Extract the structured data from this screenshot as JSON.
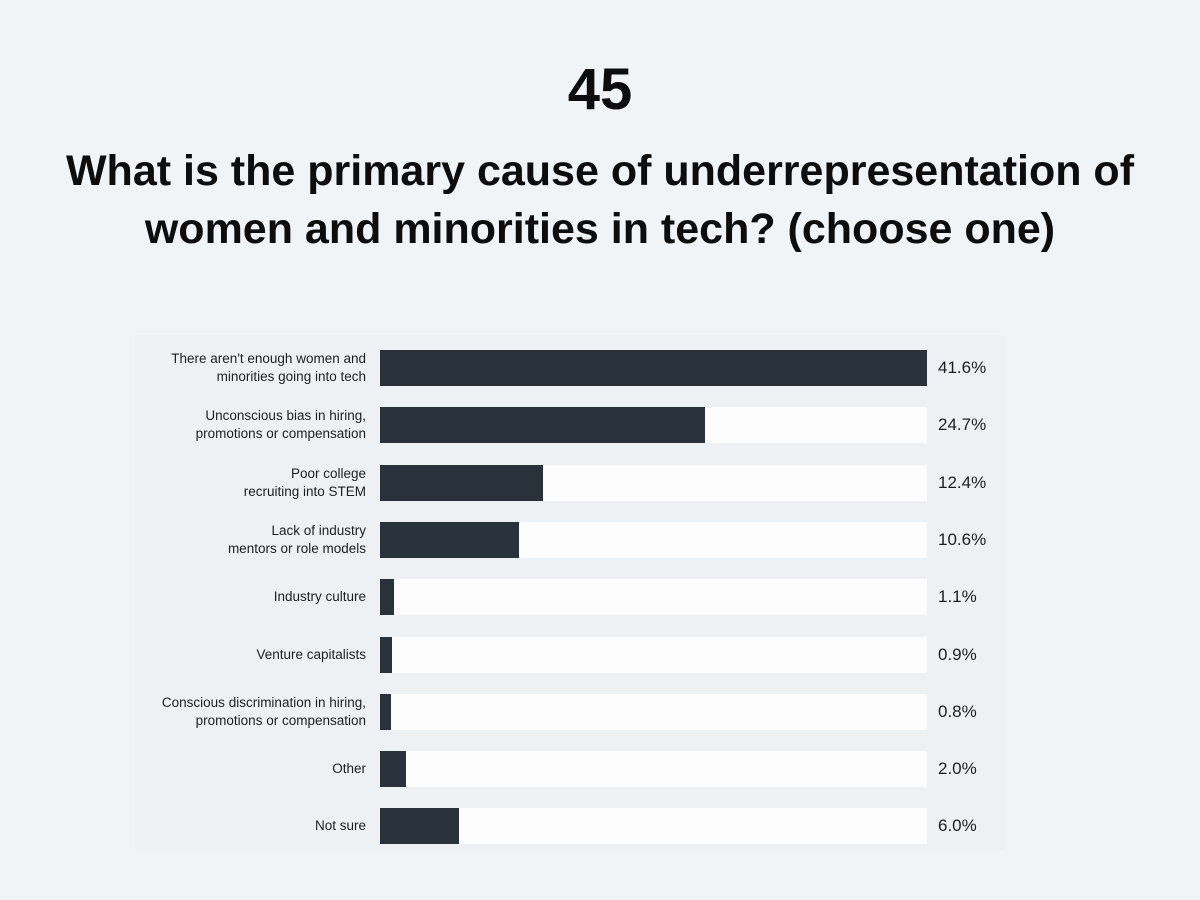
{
  "header": {
    "number": "45",
    "question": "What is the primary cause of underrepresentation of women and minorities in tech? (choose one)"
  },
  "colors": {
    "background": "#f1f4f7",
    "bar": "#29313a",
    "track": "#fdfdfe"
  },
  "chart_data": {
    "type": "bar",
    "orientation": "horizontal",
    "title": "What is the primary cause of underrepresentation of women and minorities in tech? (choose one)",
    "xlabel": "",
    "ylabel": "",
    "xlim": [
      0,
      41.6
    ],
    "grid": false,
    "categories": [
      "There aren't enough women and\nminorities going into tech",
      "Unconscious bias in hiring,\npromotions or compensation",
      "Poor college\nrecruiting into STEM",
      "Lack of industry\nmentors or role models",
      "Industry culture",
      "Venture capitalists",
      "Conscious discrimination in hiring,\npromotions or compensation",
      "Other",
      "Not sure"
    ],
    "values": [
      41.6,
      24.7,
      12.4,
      10.6,
      1.1,
      0.9,
      0.8,
      2.0,
      6.0
    ],
    "value_labels": [
      "41.6%",
      "24.7%",
      "12.4%",
      "10.6%",
      "1.1%",
      "0.9%",
      "0.8%",
      "2.0%",
      "6.0%"
    ]
  }
}
